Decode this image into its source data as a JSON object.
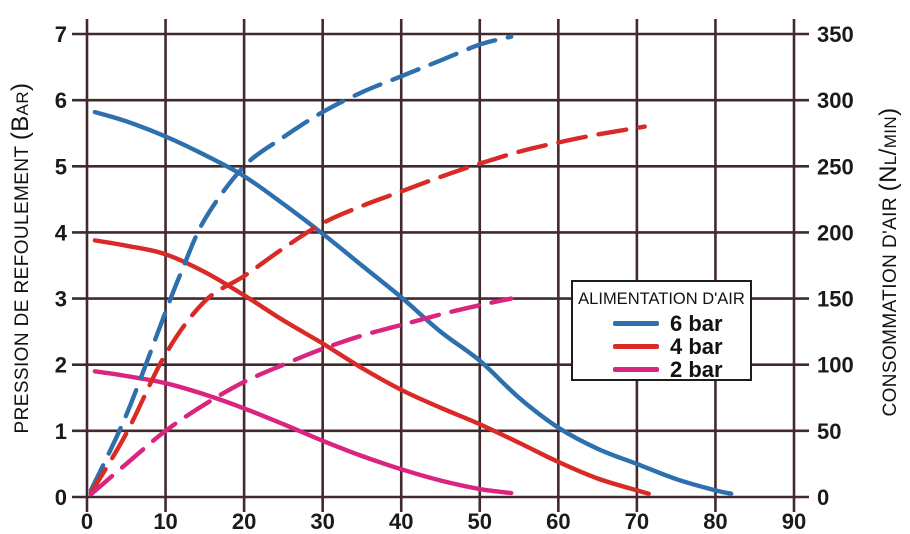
{
  "figure": {
    "background_color": "#ffffff",
    "text_color": "#1a1a1a"
  },
  "chart_data": {
    "type": "line",
    "title": "",
    "grid": {
      "on": true,
      "color": "#42292e"
    },
    "x_axis": {
      "label": "",
      "range": [
        0,
        90
      ],
      "ticks": [
        0,
        10,
        20,
        30,
        40,
        50,
        60,
        70,
        80,
        90
      ]
    },
    "y_axis_left": {
      "title": "PRESSION DE REFOULEMENT",
      "unit": "(Bar)",
      "range": [
        0,
        7
      ],
      "ticks": [
        0,
        1,
        2,
        3,
        4,
        5,
        6,
        7
      ]
    },
    "y_axis_right": {
      "title": "CONSOMMATION D'AIR",
      "unit": "(Nl/min)",
      "range": [
        0,
        350
      ],
      "ticks": [
        0,
        50,
        100,
        150,
        200,
        250,
        300,
        350
      ]
    },
    "legend": {
      "title": "ALIMENTATION D'AIR",
      "position": "right-middle",
      "entries": [
        {
          "label": "6 bar",
          "color": "#2e6fae"
        },
        {
          "label": "4 bar",
          "color": "#d92a27"
        },
        {
          "label": "2 bar",
          "color": "#d92580"
        }
      ]
    },
    "series": [
      {
        "name": "pression de refoulement - alimentation 6 bar",
        "axis": "left",
        "style": "solid",
        "color": "#2e6fae",
        "points": [
          [
            1,
            5.82
          ],
          [
            5,
            5.68
          ],
          [
            10,
            5.45
          ],
          [
            15,
            5.17
          ],
          [
            20,
            4.85
          ],
          [
            25,
            4.43
          ],
          [
            30,
            3.98
          ],
          [
            35,
            3.5
          ],
          [
            40,
            3.02
          ],
          [
            45,
            2.5
          ],
          [
            50,
            2.06
          ],
          [
            55,
            1.5
          ],
          [
            60,
            1.05
          ],
          [
            65,
            0.73
          ],
          [
            70,
            0.5
          ],
          [
            75,
            0.27
          ],
          [
            80,
            0.1
          ],
          [
            82,
            0.05
          ]
        ]
      },
      {
        "name": "pression de refoulement - alimentation 4 bar",
        "axis": "left",
        "style": "solid",
        "color": "#d92a27",
        "points": [
          [
            1,
            3.88
          ],
          [
            5,
            3.8
          ],
          [
            10,
            3.67
          ],
          [
            15,
            3.4
          ],
          [
            20,
            3.05
          ],
          [
            25,
            2.67
          ],
          [
            30,
            2.32
          ],
          [
            35,
            1.95
          ],
          [
            40,
            1.62
          ],
          [
            45,
            1.35
          ],
          [
            50,
            1.1
          ],
          [
            55,
            0.82
          ],
          [
            60,
            0.53
          ],
          [
            65,
            0.28
          ],
          [
            70,
            0.1
          ],
          [
            71.5,
            0.05
          ]
        ]
      },
      {
        "name": "pression de refoulement - alimentation 2 bar",
        "axis": "left",
        "style": "solid",
        "color": "#d92580",
        "points": [
          [
            1,
            1.9
          ],
          [
            5,
            1.83
          ],
          [
            10,
            1.72
          ],
          [
            15,
            1.55
          ],
          [
            20,
            1.34
          ],
          [
            25,
            1.1
          ],
          [
            30,
            0.85
          ],
          [
            35,
            0.62
          ],
          [
            40,
            0.42
          ],
          [
            45,
            0.25
          ],
          [
            50,
            0.12
          ],
          [
            54,
            0.06
          ]
        ]
      },
      {
        "name": "consommation d'air - alimentation 6 bar",
        "axis": "right",
        "style": "dashed",
        "color": "#2e6fae",
        "points": [
          [
            0.5,
            5
          ],
          [
            5,
            62
          ],
          [
            10,
            140
          ],
          [
            12,
            170
          ],
          [
            15,
            210
          ],
          [
            20,
            250
          ],
          [
            25,
            272
          ],
          [
            30,
            291
          ],
          [
            35,
            306
          ],
          [
            40,
            318
          ],
          [
            45,
            330
          ],
          [
            50,
            342
          ],
          [
            54,
            348
          ]
        ]
      },
      {
        "name": "consommation d'air - alimentation 4 bar",
        "axis": "right",
        "style": "dashed",
        "color": "#d92a27",
        "points": [
          [
            0.5,
            3
          ],
          [
            5,
            48
          ],
          [
            10,
            108
          ],
          [
            15,
            148
          ],
          [
            20,
            167
          ],
          [
            25,
            188
          ],
          [
            30,
            207
          ],
          [
            35,
            220
          ],
          [
            40,
            231
          ],
          [
            45,
            242
          ],
          [
            50,
            252
          ],
          [
            55,
            261
          ],
          [
            60,
            268
          ],
          [
            65,
            274
          ],
          [
            71,
            280
          ]
        ]
      },
      {
        "name": "consommation d'air - alimentation 2 bar",
        "axis": "right",
        "style": "dashed",
        "color": "#d92580",
        "points": [
          [
            0.5,
            2
          ],
          [
            5,
            25
          ],
          [
            10,
            50
          ],
          [
            15,
            70
          ],
          [
            20,
            87
          ],
          [
            25,
            100
          ],
          [
            30,
            112
          ],
          [
            35,
            122
          ],
          [
            40,
            130
          ],
          [
            45,
            138
          ],
          [
            50,
            145
          ],
          [
            54,
            150
          ]
        ]
      }
    ]
  }
}
